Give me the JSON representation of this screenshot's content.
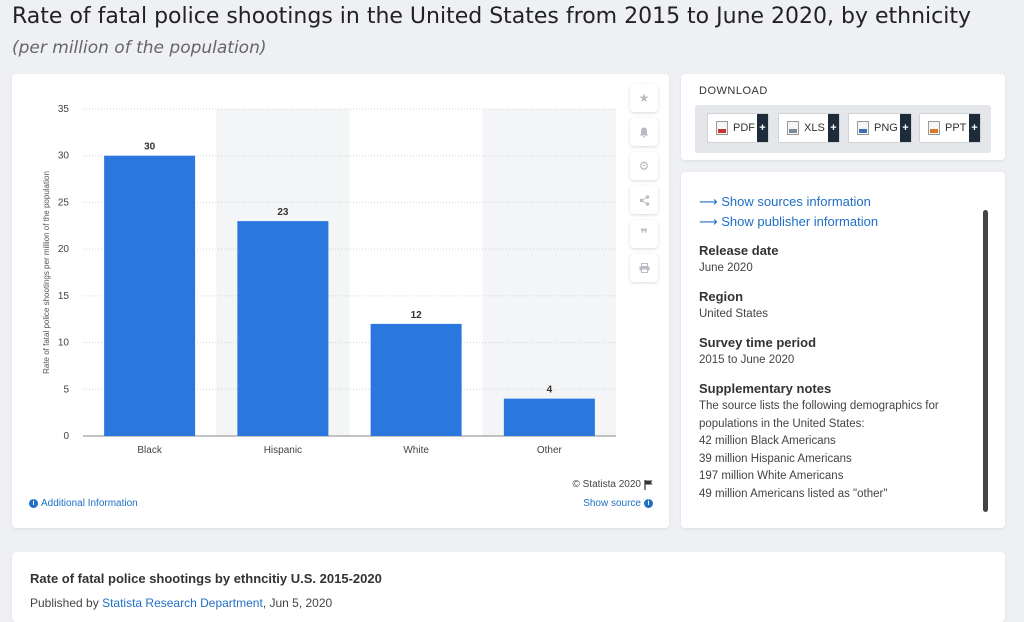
{
  "header": {
    "title": "Rate of fatal police shootings in the United States from 2015 to June 2020, by ethnicity",
    "subtitle": "(per million of the population)"
  },
  "chart_data": {
    "type": "bar",
    "categories": [
      "Black",
      "Hispanic",
      "White",
      "Other"
    ],
    "values": [
      30,
      23,
      12,
      4
    ],
    "ylabel": "Rate of fatal police shootings per million of the population",
    "ylim": [
      0,
      35
    ],
    "yticks": [
      0,
      5,
      10,
      15,
      20,
      25,
      30,
      35
    ],
    "grid": true,
    "bar_color": "#2a77dd",
    "band_color": "#f4f5f6"
  },
  "chart_card": {
    "copyright": "© Statista 2020",
    "additional_info": "Additional Information",
    "show_source": "Show source"
  },
  "download": {
    "title": "DOWNLOAD",
    "buttons": [
      {
        "label": "PDF",
        "color": "#cc3333"
      },
      {
        "label": "XLS",
        "color": "#7a8a99"
      },
      {
        "label": "PNG",
        "color": "#3a6fb0"
      },
      {
        "label": "PPT",
        "color": "#d97a2b"
      }
    ],
    "plus": "+"
  },
  "info": {
    "sources_link": "Show sources information",
    "publisher_link": "Show publisher information",
    "release_label": "Release date",
    "release_value": "June 2020",
    "region_label": "Region",
    "region_value": "United States",
    "period_label": "Survey time period",
    "period_value": "2015 to June 2020",
    "notes_label": "Supplementary notes",
    "notes": [
      "The source lists the following demographics for populations in the United States:",
      "42 million Black Americans",
      "39 million Hispanic Americans",
      "197 million White Americans",
      "49 million Americans listed as \"other\""
    ]
  },
  "bottom": {
    "title": "Rate of fatal police shootings by ethncitiy U.S. 2015-2020",
    "published_prefix": "Published by",
    "publisher": "Statista Research Department",
    "published_date": ", Jun 5, 2020"
  }
}
